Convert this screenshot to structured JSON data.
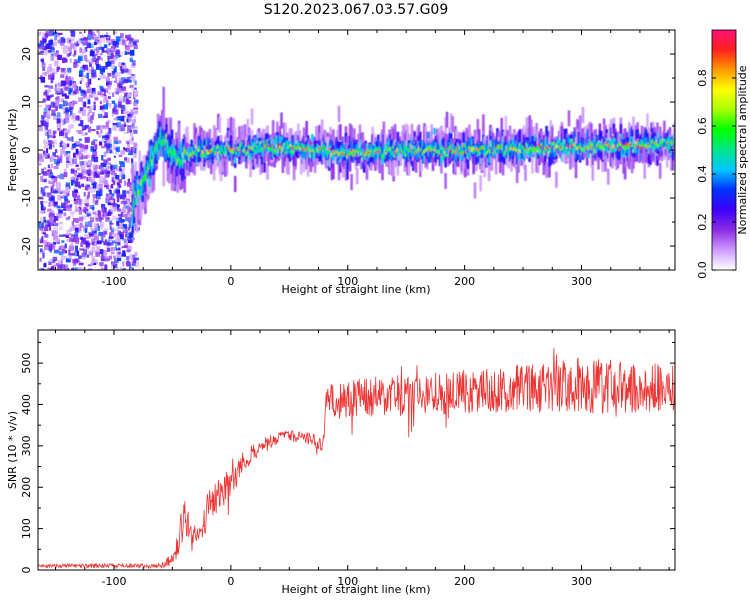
{
  "title": "S120.2023.067.03.57.G09",
  "chart_data": [
    {
      "type": "heatmap",
      "xlabel": "Height of straight line (km)",
      "ylabel": "Frequency (Hz)",
      "xlim": [
        -165,
        380
      ],
      "ylim": [
        -25,
        25
      ],
      "x_ticks": [
        -100,
        0,
        100,
        200,
        300
      ],
      "y_ticks": [
        -20,
        -10,
        0,
        10,
        20
      ],
      "colorbar": {
        "label": "Normalized spectral amplitude",
        "range": [
          0.0,
          1.0
        ],
        "ticks": [
          0.0,
          0.2,
          0.4,
          0.6,
          0.8
        ],
        "colors": [
          "#ffffff",
          "#cc99ff",
          "#8a2be2",
          "#3b00ff",
          "#0033ff",
          "#00c8ff",
          "#00e68a",
          "#00ff00",
          "#aaff00",
          "#ffff00",
          "#ff9900",
          "#ff2020",
          "#ff1177"
        ]
      },
      "noise_region_x": [
        -165,
        -82
      ],
      "ridge": {
        "x": [
          -85,
          -80,
          -75,
          -70,
          -65,
          -60,
          -55,
          -50,
          -45,
          -40,
          -30,
          -20,
          0,
          50,
          100,
          150,
          200,
          250,
          300,
          350,
          380
        ],
        "frequency": [
          -12,
          -9,
          -6,
          -3,
          0,
          2,
          1,
          -1,
          -2,
          -1,
          -0.5,
          -0.3,
          0,
          0.5,
          -0.5,
          -0.3,
          0,
          0.3,
          0.7,
          1.0,
          1.2
        ]
      }
    },
    {
      "type": "line",
      "xlabel": "Height of straight line (km)",
      "ylabel": "SNR (10 * v/v)",
      "xlim": [
        -165,
        380
      ],
      "ylim": [
        0,
        580
      ],
      "x_ticks": [
        -100,
        0,
        100,
        200,
        300
      ],
      "y_ticks": [
        0,
        100,
        200,
        300,
        400,
        500
      ],
      "line_color": "#ee3333",
      "envelope": {
        "x": [
          -165,
          -60,
          -48,
          -44,
          -40,
          -37,
          -33,
          -30,
          -20,
          -10,
          0,
          10,
          20,
          30,
          40,
          50,
          60,
          70,
          79,
          81,
          100,
          150,
          200,
          250,
          300,
          350,
          380
        ],
        "mean": [
          10,
          10,
          30,
          80,
          140,
          110,
          70,
          100,
          140,
          180,
          215,
          255,
          285,
          305,
          318,
          325,
          320,
          315,
          300,
          410,
          415,
          420,
          432,
          440,
          445,
          440,
          440
        ],
        "spread": [
          5,
          6,
          20,
          45,
          60,
          55,
          30,
          40,
          55,
          45,
          40,
          35,
          25,
          20,
          15,
          15,
          15,
          18,
          15,
          55,
          55,
          55,
          60,
          65,
          75,
          70,
          60
        ]
      }
    }
  ]
}
